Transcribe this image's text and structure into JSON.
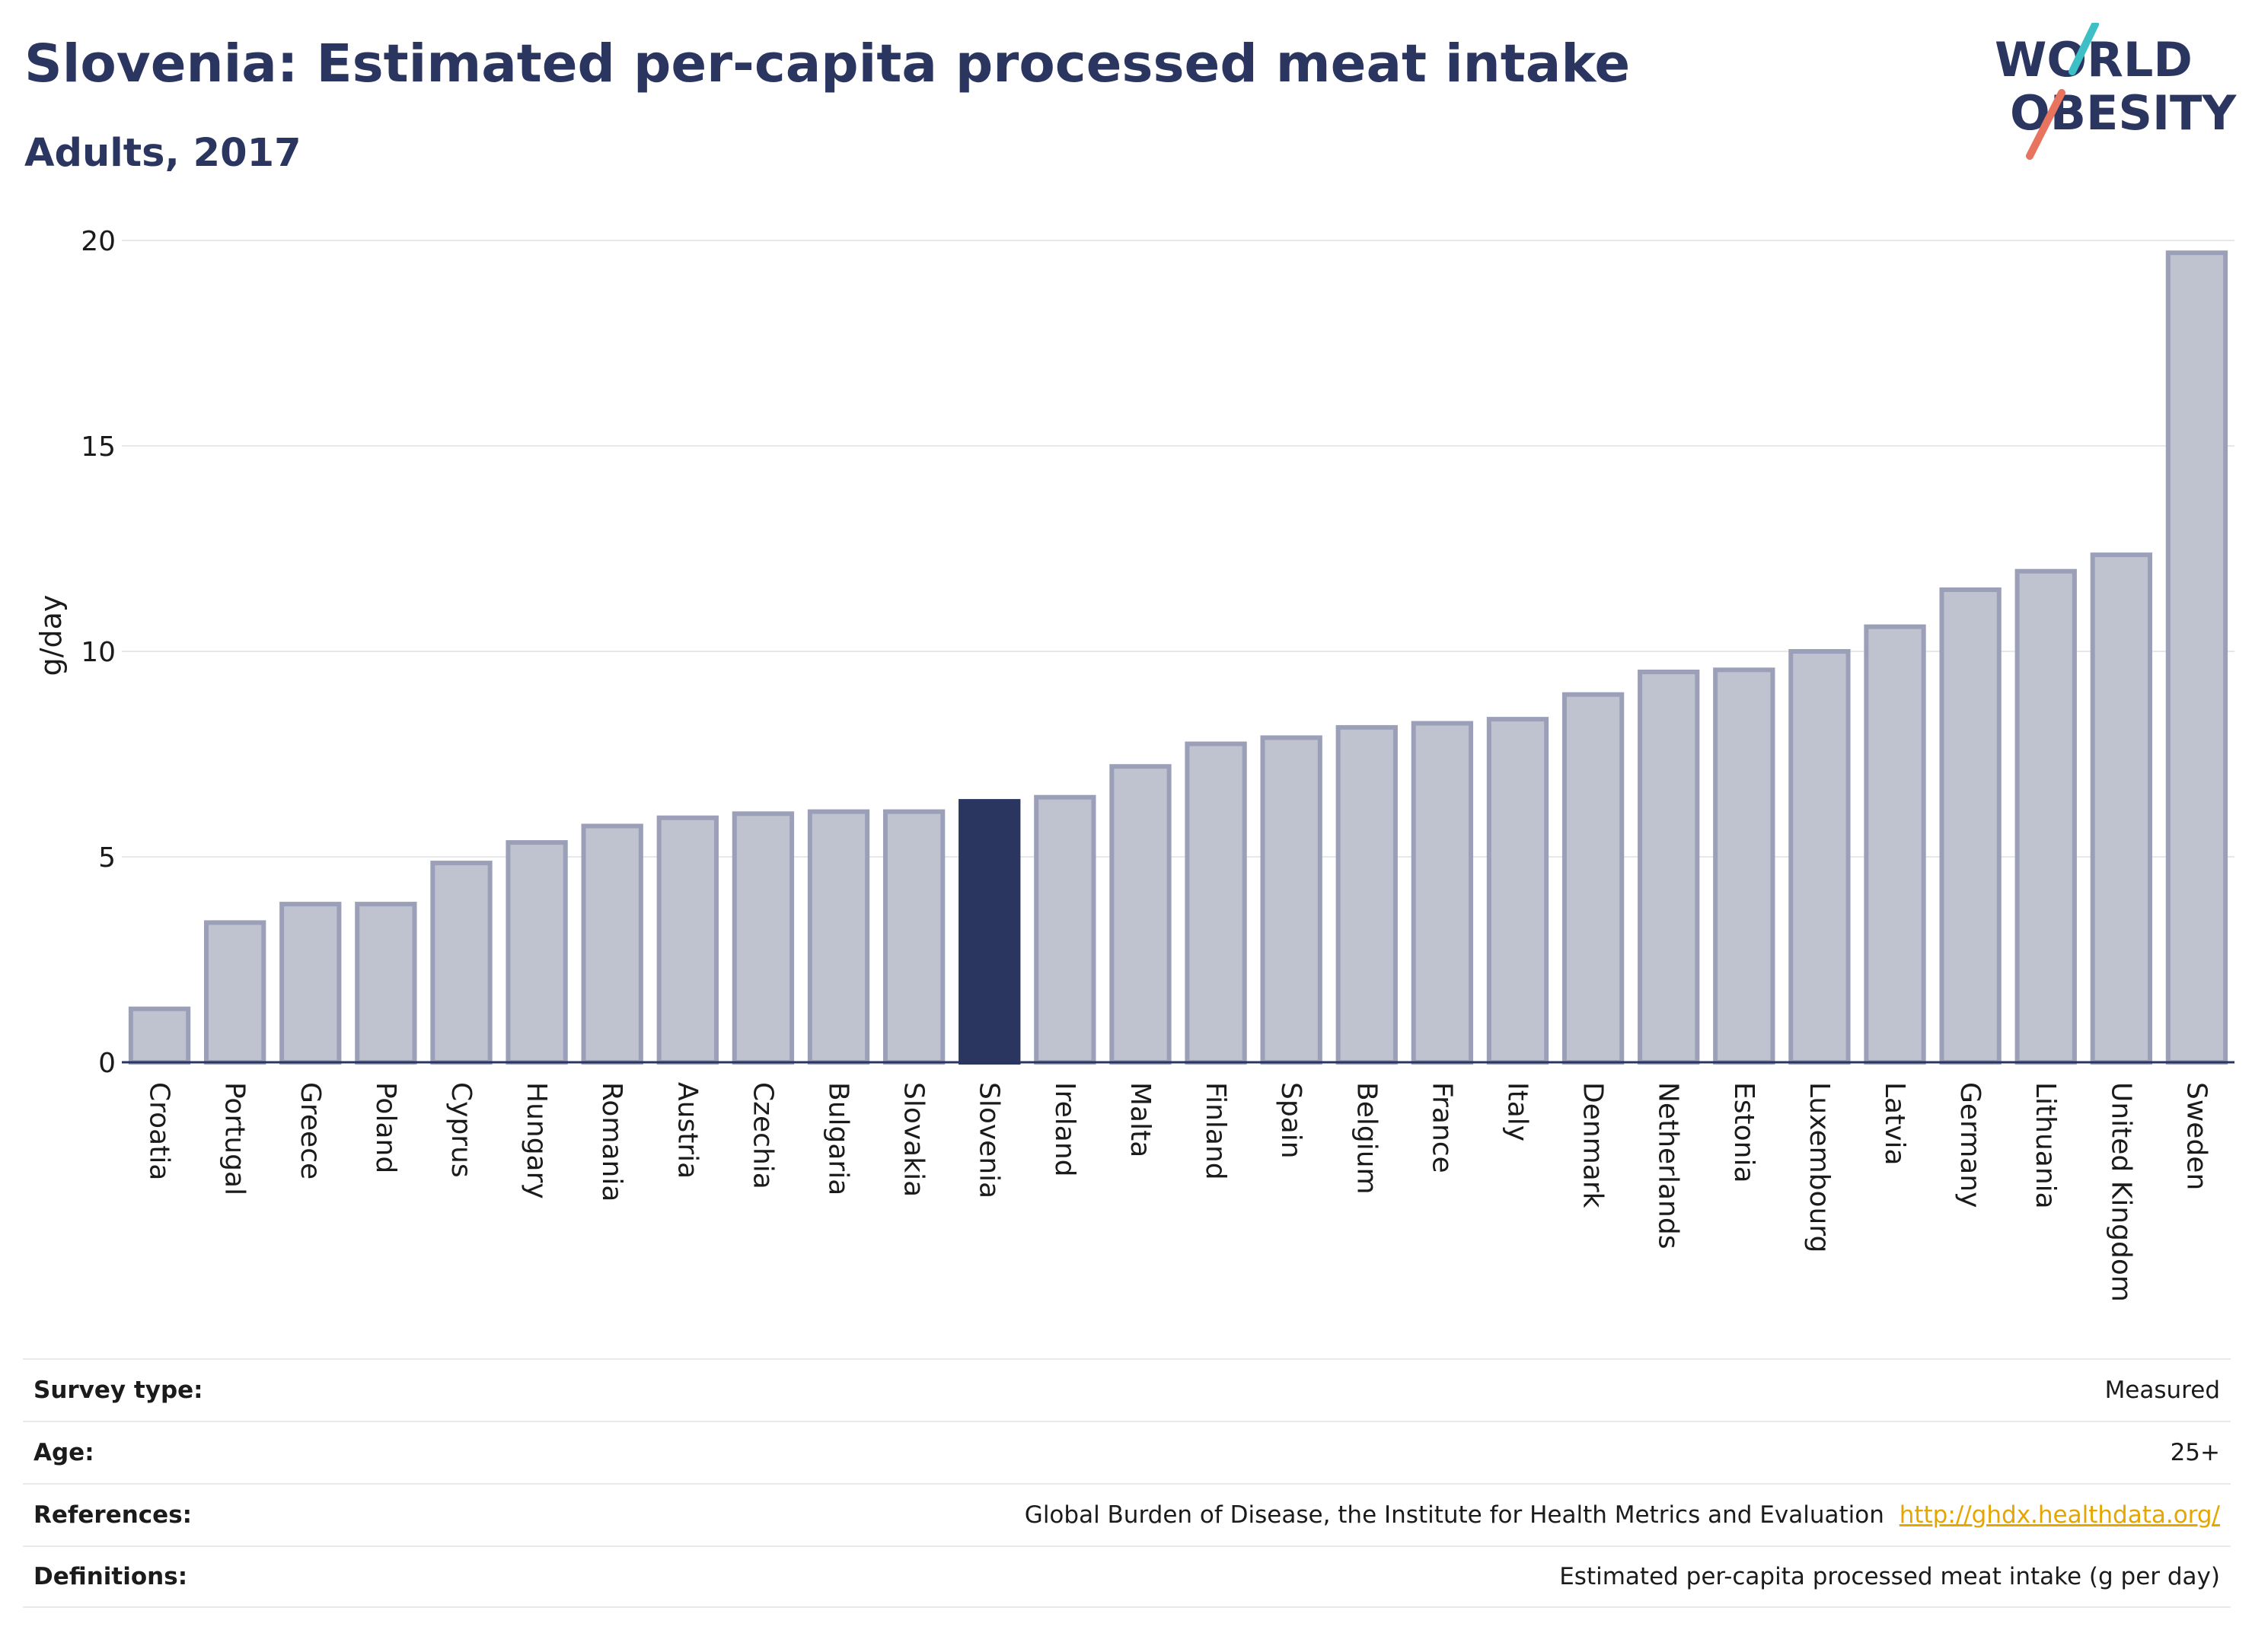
{
  "header": {
    "title": "Slovenia: Estimated per-capita processed meat intake",
    "subtitle": "Adults, 2017"
  },
  "logo": {
    "line1": "WORLD",
    "line2": "OBESITY",
    "color": "#2a3560",
    "accent_teal": "#3cc0c6",
    "accent_coral": "#e8735f"
  },
  "chart_data": {
    "type": "bar",
    "ylabel": "g/day",
    "xlabel": "",
    "ylim": [
      0,
      20
    ],
    "yticks": [
      0,
      5,
      10,
      15,
      20
    ],
    "grid": true,
    "highlight": "Slovenia",
    "colors": {
      "bar": "#bfc2cf",
      "bar_edge": "#9ba0b8",
      "highlight": "#2a3560"
    },
    "categories": [
      "Croatia",
      "Portugal",
      "Greece",
      "Poland",
      "Cyprus",
      "Hungary",
      "Romania",
      "Austria",
      "Czechia",
      "Bulgaria",
      "Slovakia",
      "Slovenia",
      "Ireland",
      "Malta",
      "Finland",
      "Spain",
      "Belgium",
      "France",
      "Italy",
      "Denmark",
      "Netherlands",
      "Estonia",
      "Luxembourg",
      "Latvia",
      "Germany",
      "Lithuania",
      "United Kingdom",
      "Sweden"
    ],
    "values": [
      1.3,
      3.4,
      3.85,
      3.85,
      4.85,
      5.35,
      5.75,
      5.95,
      6.05,
      6.1,
      6.1,
      6.35,
      6.45,
      7.2,
      7.75,
      7.9,
      8.15,
      8.25,
      8.35,
      8.95,
      9.5,
      9.55,
      10.0,
      10.6,
      11.5,
      11.95,
      12.35,
      19.7
    ]
  },
  "info": {
    "survey_type": {
      "label": "Survey type:",
      "value": "Measured"
    },
    "age": {
      "label": "Age:",
      "value": "25+"
    },
    "references": {
      "label": "References:",
      "value": "Global Burden of Disease, the Institute for Health Metrics and Evaluation",
      "link": "http://ghdx.healthdata.org/"
    },
    "definitions": {
      "label": "Definitions:",
      "value": "Estimated per-capita processed meat intake (g per day)"
    }
  }
}
